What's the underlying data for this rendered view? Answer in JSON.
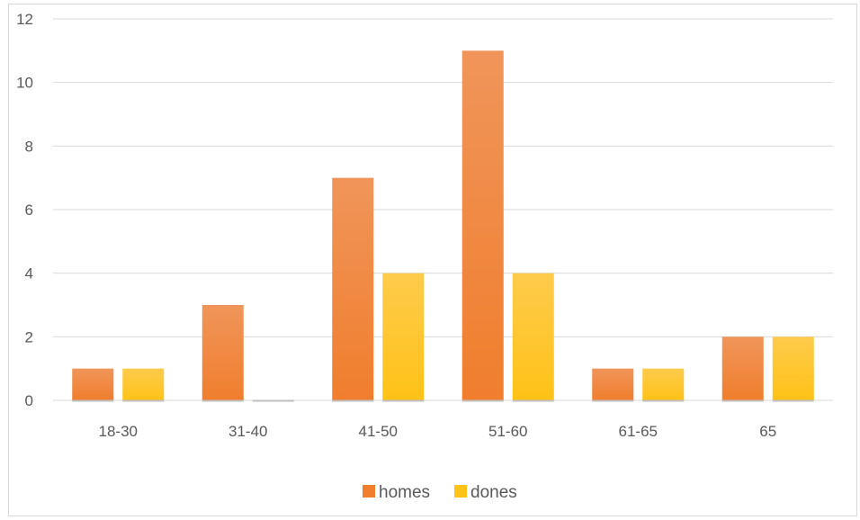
{
  "chart_data": {
    "type": "bar",
    "categories": [
      "18-30",
      "31-40",
      "41-50",
      "51-60",
      "61-65",
      "65"
    ],
    "series": [
      {
        "name": "homes",
        "values": [
          1,
          3,
          7,
          11,
          1,
          2
        ],
        "color": "#f07e2d",
        "color_light": "#f0955a"
      },
      {
        "name": "dones",
        "values": [
          1,
          0,
          4,
          4,
          1,
          2
        ],
        "color": "#ffc217",
        "color_light": "#fecb4c"
      }
    ],
    "ylim": [
      0,
      12
    ],
    "yticks": [
      0,
      2,
      4,
      6,
      8,
      10,
      12
    ],
    "grid": true,
    "legend": "bottom",
    "title": "",
    "xlabel": "",
    "ylabel": ""
  }
}
